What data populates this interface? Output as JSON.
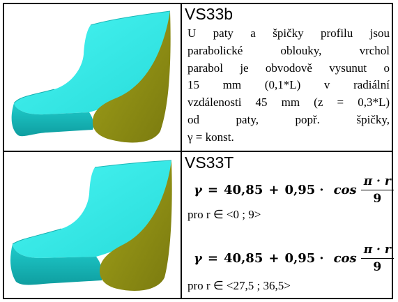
{
  "rows": [
    {
      "code": "VS33b",
      "description_lines": [
        "U paty a špičky profilu jsou",
        "parabolické oblouky, vrchol",
        "parabol je obvodově vysunut o",
        "15 mm (0,1*L) v radiální",
        "vzdálenosti 45 mm (z = 0,3*L)",
        "od paty, popř. špičky,",
        "γ = konst."
      ],
      "image_icon": "blade-profile-image"
    },
    {
      "code": "VS33T",
      "formulas": [
        {
          "gamma": "γ",
          "equals": "=",
          "constant": "40,85",
          "plus": "+",
          "coefficient": "0,95",
          "dot": "·",
          "func": "cos",
          "numerator": "π · r",
          "denominator": "9",
          "range": "pro r ∈ <0 ; 9>"
        },
        {
          "gamma": "γ",
          "equals": "=",
          "constant": "40,85",
          "plus": "+",
          "coefficient": "0,95",
          "dot": "·",
          "func": "cos",
          "numerator": "π · r",
          "denominator": "9",
          "range": "pro r ∈ <27,5 ; 36,5>"
        }
      ],
      "image_icon": "blade-profile-image"
    }
  ],
  "colors": {
    "surface_light": "#3ff0ee",
    "surface_mid": "#21d2d0",
    "surface_dark": "#10a5a6",
    "side_face": "#9a9a16",
    "side_face_dark": "#77770d",
    "border": "#000000"
  }
}
